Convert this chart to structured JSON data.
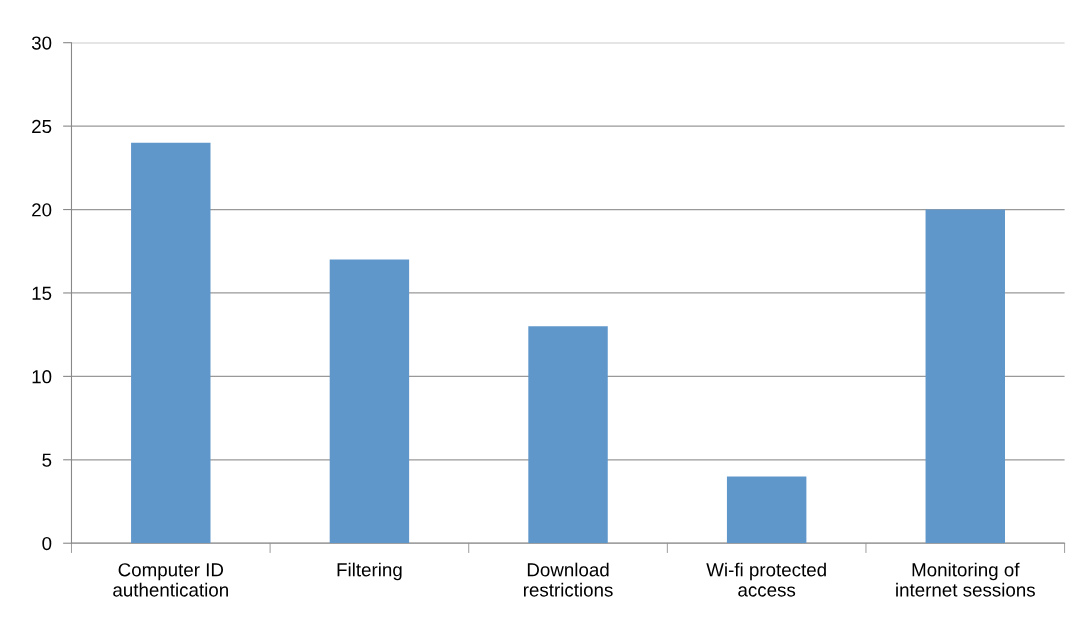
{
  "chart_data": {
    "type": "bar",
    "categories": [
      "Computer ID\nauthentication",
      "Filtering",
      "Download\nrestrictions",
      "Wi-fi protected\naccess",
      "Monitoring of\ninternet sessions"
    ],
    "values": [
      24,
      17,
      13,
      4,
      20
    ],
    "color": "#6097cb",
    "ylim": [
      0,
      30
    ],
    "yticks": [
      0,
      5,
      10,
      15,
      20,
      25,
      30
    ],
    "grid": "y",
    "legend": false
  }
}
